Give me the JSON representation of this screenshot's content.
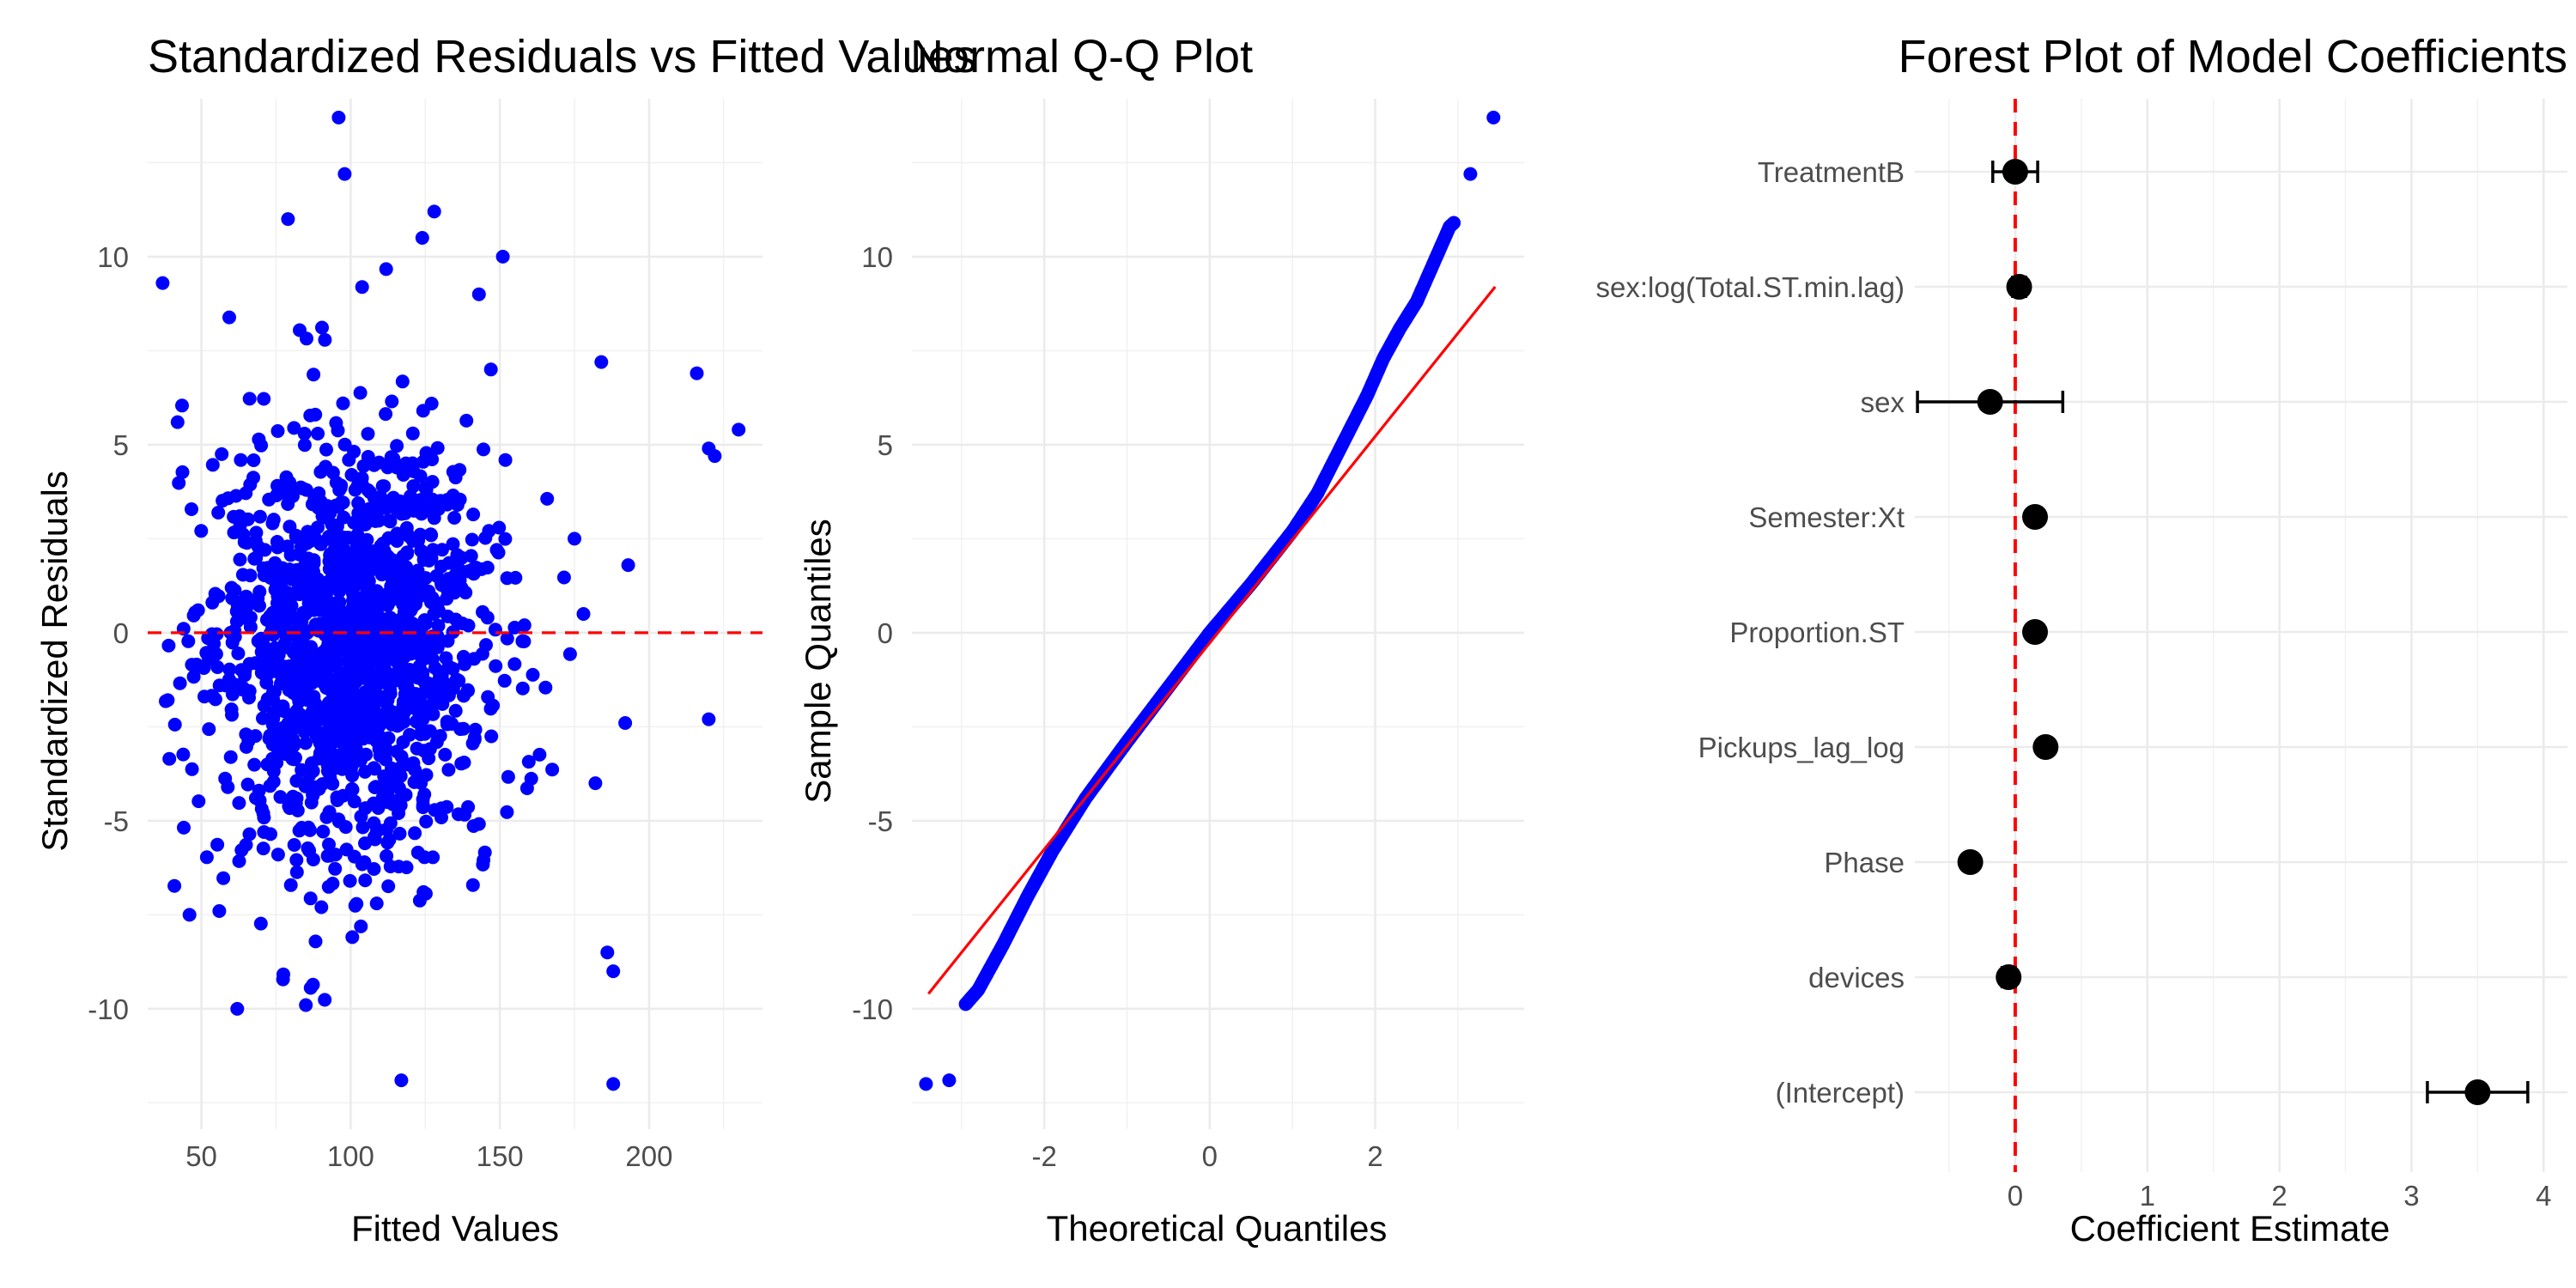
{
  "chart_data": [
    {
      "type": "scatter",
      "title": "Standardized Residuals vs Fitted Values",
      "xlabel": "Fitted Values",
      "ylabel": "Standardized Residuals",
      "xlim": [
        32,
        238
      ],
      "ylim": [
        -13.2,
        14.2
      ],
      "xticks": [
        50,
        100,
        150,
        200
      ],
      "yticks": [
        -10,
        -5,
        0,
        5,
        10
      ],
      "reference_line": {
        "orientation": "horizontal",
        "value": 0,
        "style": "dashed",
        "color": "#ff0000"
      },
      "point_color": "#0000ff",
      "grid": true,
      "notable_points": [
        {
          "x": 37,
          "y": 9.3
        },
        {
          "x": 96,
          "y": 13.7
        },
        {
          "x": 98,
          "y": 12.2
        },
        {
          "x": 117,
          "y": -11.9
        },
        {
          "x": 188,
          "y": -12.0
        },
        {
          "x": 216,
          "y": 6.9
        },
        {
          "x": 220,
          "y": 4.9
        },
        {
          "x": 222,
          "y": 4.7
        },
        {
          "x": 230,
          "y": 5.4
        },
        {
          "x": 220,
          "y": -2.3
        },
        {
          "x": 62,
          "y": -10.0
        },
        {
          "x": 128,
          "y": 11.2
        },
        {
          "x": 151,
          "y": 10.0
        },
        {
          "x": 79,
          "y": 11.0
        },
        {
          "x": 192,
          "y": -2.4
        },
        {
          "x": 193,
          "y": 1.8
        },
        {
          "x": 184,
          "y": 7.2
        },
        {
          "x": 186,
          "y": -8.5
        },
        {
          "x": 188,
          "y": -9.0
        },
        {
          "x": 46,
          "y": -7.5
        },
        {
          "x": 56,
          "y": -7.4
        },
        {
          "x": 85,
          "y": -9.9
        },
        {
          "x": 124,
          "y": 10.5
        },
        {
          "x": 143,
          "y": 9.0
        },
        {
          "x": 147,
          "y": 7.0
        },
        {
          "x": 42,
          "y": 5.6
        },
        {
          "x": 175,
          "y": 2.5
        },
        {
          "x": 178,
          "y": 0.5
        },
        {
          "x": 182,
          "y": -4.0
        }
      ]
    },
    {
      "type": "line",
      "title": "Normal Q-Q Plot",
      "xlabel": "Theoretical Quantiles",
      "ylabel": "Sample Quantiles",
      "xlim": [
        -3.6,
        3.8
      ],
      "ylim": [
        -13.2,
        14.2
      ],
      "xticks": [
        -2,
        0,
        2
      ],
      "yticks": [
        -10,
        -5,
        0,
        5,
        10
      ],
      "point_color": "#0000ff",
      "reference_line": {
        "x": [
          -3.4,
          3.45
        ],
        "y": [
          -9.6,
          9.2
        ],
        "color": "#ff0000"
      },
      "quantile_curve": [
        {
          "x": -3.43,
          "y": -12.0
        },
        {
          "x": -3.15,
          "y": -11.9
        },
        {
          "x": -3.0,
          "y": -10.0
        },
        {
          "x": -2.8,
          "y": -9.5
        },
        {
          "x": -2.5,
          "y": -8.3
        },
        {
          "x": -2.2,
          "y": -7.0
        },
        {
          "x": -1.9,
          "y": -5.8
        },
        {
          "x": -1.5,
          "y": -4.4
        },
        {
          "x": -1.0,
          "y": -2.9
        },
        {
          "x": -0.5,
          "y": -1.45
        },
        {
          "x": 0.0,
          "y": 0.0
        },
        {
          "x": 0.5,
          "y": 1.3
        },
        {
          "x": 1.0,
          "y": 2.7
        },
        {
          "x": 1.3,
          "y": 3.7
        },
        {
          "x": 1.6,
          "y": 5.0
        },
        {
          "x": 1.9,
          "y": 6.3
        },
        {
          "x": 2.1,
          "y": 7.3
        },
        {
          "x": 2.3,
          "y": 8.1
        },
        {
          "x": 2.5,
          "y": 8.8
        },
        {
          "x": 2.7,
          "y": 9.8
        },
        {
          "x": 2.9,
          "y": 10.8
        },
        {
          "x": 3.0,
          "y": 11.0
        },
        {
          "x": 3.15,
          "y": 12.2
        },
        {
          "x": 3.43,
          "y": 13.7
        }
      ],
      "grid": true
    },
    {
      "type": "scatter",
      "title": "Forest Plot of Model Coefficients",
      "xlabel": "Coefficient Estimate",
      "ylabel": "",
      "xlim": [
        -0.76,
        4.18
      ],
      "xticks": [
        0,
        1,
        2,
        3,
        4
      ],
      "reference_line": {
        "orientation": "vertical",
        "value": 0,
        "style": "dashed",
        "color": "#ff0000"
      },
      "point_color": "#000000",
      "categories": [
        "TreatmentB",
        "sex:log(Total.ST.min.lag)",
        "sex",
        "Semester:Xt",
        "Proportion.ST",
        "Pickups_lag_log",
        "Phase",
        "devices",
        "(Intercept)"
      ],
      "estimates": [
        0.0,
        0.03,
        -0.19,
        0.15,
        0.15,
        0.23,
        -0.34,
        -0.05,
        3.5
      ],
      "ci_low": [
        -0.17,
        -0.02,
        -0.74,
        0.15,
        0.15,
        0.23,
        -0.34,
        -0.1,
        3.12
      ],
      "ci_high": [
        0.17,
        0.08,
        0.36,
        0.15,
        0.15,
        0.23,
        -0.34,
        0.0,
        3.88
      ],
      "grid": true
    }
  ]
}
